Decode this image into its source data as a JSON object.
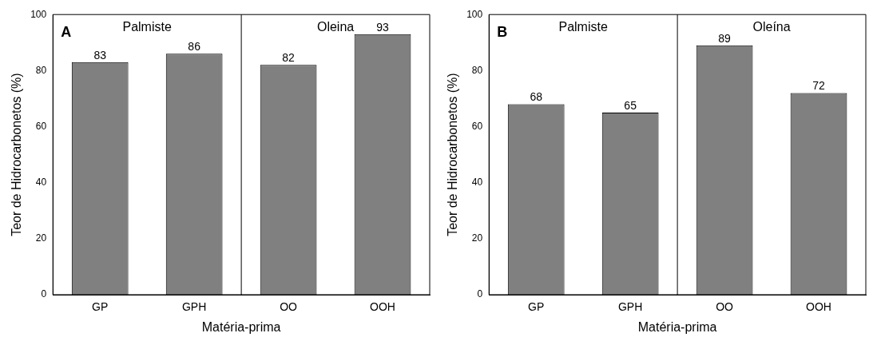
{
  "chart_data": [
    {
      "type": "bar",
      "annotations": [
        "A",
        "Palmiste",
        "Oleina"
      ],
      "xlabel": "Matéria-prima",
      "ylabel": "Teor de Hidrocarbonetos (%)",
      "categories": [
        "GP",
        "GPH",
        "OO",
        "OOH"
      ],
      "values": [
        83,
        86,
        82,
        93
      ],
      "color": "#808080",
      "ylim": [
        0,
        100
      ],
      "yticks": [
        0,
        20,
        40,
        60,
        80,
        100
      ],
      "grid": false,
      "legend": false,
      "data_labels": true
    },
    {
      "type": "bar",
      "annotations": [
        "B",
        "Palmiste",
        "Oleína"
      ],
      "xlabel": "Matéria-prima",
      "ylabel": "Teor de Hidrocarbonetos (%)",
      "categories": [
        "GP",
        "GPH",
        "OO",
        "OOH"
      ],
      "values": [
        68,
        65,
        89,
        72
      ],
      "color": "#808080",
      "ylim": [
        0,
        100
      ],
      "yticks": [
        0,
        20,
        40,
        60,
        80,
        100
      ],
      "grid": false,
      "legend": false,
      "data_labels": true
    }
  ]
}
